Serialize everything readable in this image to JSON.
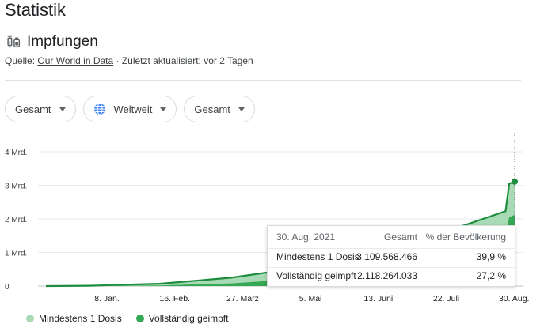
{
  "page": {
    "title": "Statistik"
  },
  "section": {
    "label": "Impfungen",
    "icon": "syringe-icon"
  },
  "source": {
    "prefix": "Quelle: ",
    "link": "Our World in Data",
    "suffix": " · Zuletzt aktualisiert: vor 2 Tagen"
  },
  "filters": [
    {
      "label": "Gesamt"
    },
    {
      "label": "Weltweit",
      "icon": "globe-icon"
    },
    {
      "label": "Gesamt"
    }
  ],
  "colors": {
    "first_dose": "#a8dab5",
    "fully": "#34a853",
    "line": "#1e8e3e"
  },
  "chart_data": {
    "type": "area",
    "y_unit": "Mrd.",
    "ylim": [
      0,
      4.3
    ],
    "yticks": [
      "0",
      "1 Mrd.",
      "2 Mrd.",
      "3 Mrd.",
      "4 Mrd."
    ],
    "x_labels": [
      "8. Jan.",
      "16. Feb.",
      "27. März",
      "5. Mai",
      "13. Juni",
      "22. Juli",
      "30. Aug."
    ],
    "series": [
      {
        "name": "Mindestens 1 Dosis",
        "x": [
          "2020-12-15",
          "2021-01-08",
          "2021-02-16",
          "2021-03-27",
          "2021-05-05",
          "2021-06-13",
          "2021-07-22",
          "2021-08-25",
          "2021-08-27",
          "2021-08-30"
        ],
        "values": [
          0.0,
          0.01,
          0.07,
          0.25,
          0.55,
          1.0,
          1.6,
          2.23,
          3.05,
          3.11
        ]
      },
      {
        "name": "Vollständig geimpft",
        "x": [
          "2020-12-15",
          "2021-01-08",
          "2021-02-16",
          "2021-03-27",
          "2021-05-05",
          "2021-06-13",
          "2021-07-22",
          "2021-08-25",
          "2021-08-27",
          "2021-08-30"
        ],
        "values": [
          0.0,
          0.0,
          0.02,
          0.08,
          0.22,
          0.45,
          0.9,
          1.55,
          2.05,
          2.12
        ]
      }
    ],
    "grid": true,
    "legend": "bottom"
  },
  "tooltip": {
    "date": "30. Aug. 2021",
    "col_total": "Gesamt",
    "col_percent": "% der Bevölkerung",
    "rows": [
      {
        "label": "Mindestens 1 Dosis",
        "total": "3.109.568.466",
        "percent": "39,9 %"
      },
      {
        "label": "Vollständig geimpft",
        "total": "2.118.264.033",
        "percent": "27,2 %"
      }
    ]
  },
  "legend": [
    {
      "label": "Mindestens 1 Dosis",
      "color": "#a8dab5"
    },
    {
      "label": "Vollständig geimpft",
      "color": "#34a853"
    }
  ]
}
